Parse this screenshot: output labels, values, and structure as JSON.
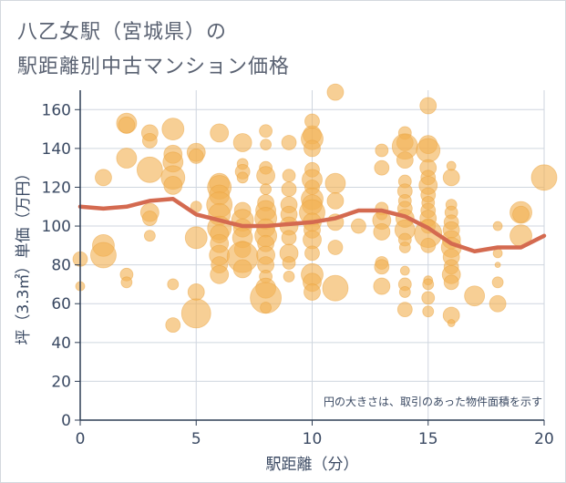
{
  "title_line1": "八乙女駅（宮城県）の",
  "title_line2": "駅距離別中古マンション価格",
  "chart_data": {
    "type": "scatter",
    "xlabel": "駅距離（分）",
    "ylabel": "坪（3.3㎡）単価（万円）",
    "xlim": [
      0,
      20
    ],
    "ylim": [
      0,
      170
    ],
    "xticks": [
      "0",
      "5",
      "10",
      "15",
      "20"
    ],
    "yticks": [
      "0",
      "20",
      "40",
      "60",
      "80",
      "100",
      "120",
      "140",
      "160"
    ],
    "note": "円の大きさは、取引のあった物件面積を示す",
    "bubble_color": "#f2b154",
    "line_color": "#d46a50",
    "grid": true,
    "points": [
      {
        "x": 0,
        "y": 83,
        "s": 8
      },
      {
        "x": 0,
        "y": 69,
        "s": 5
      },
      {
        "x": 1,
        "y": 125,
        "s": 9
      },
      {
        "x": 1,
        "y": 90,
        "s": 12
      },
      {
        "x": 1,
        "y": 85,
        "s": 14
      },
      {
        "x": 2,
        "y": 153,
        "s": 11
      },
      {
        "x": 2,
        "y": 152,
        "s": 9
      },
      {
        "x": 2,
        "y": 135,
        "s": 11
      },
      {
        "x": 2,
        "y": 75,
        "s": 7
      },
      {
        "x": 2,
        "y": 71,
        "s": 6
      },
      {
        "x": 3,
        "y": 148,
        "s": 9
      },
      {
        "x": 3,
        "y": 144,
        "s": 8
      },
      {
        "x": 3,
        "y": 129,
        "s": 14
      },
      {
        "x": 3,
        "y": 107,
        "s": 10
      },
      {
        "x": 3,
        "y": 104,
        "s": 8
      },
      {
        "x": 3,
        "y": 95,
        "s": 6
      },
      {
        "x": 4,
        "y": 150,
        "s": 12
      },
      {
        "x": 4,
        "y": 137,
        "s": 10
      },
      {
        "x": 4,
        "y": 133,
        "s": 11
      },
      {
        "x": 4,
        "y": 125,
        "s": 13
      },
      {
        "x": 4,
        "y": 121,
        "s": 10
      },
      {
        "x": 4,
        "y": 70,
        "s": 6
      },
      {
        "x": 4,
        "y": 49,
        "s": 8
      },
      {
        "x": 5,
        "y": 138,
        "s": 10
      },
      {
        "x": 5,
        "y": 136,
        "s": 8
      },
      {
        "x": 5,
        "y": 110,
        "s": 6
      },
      {
        "x": 5,
        "y": 94,
        "s": 12
      },
      {
        "x": 5,
        "y": 66,
        "s": 9
      },
      {
        "x": 5,
        "y": 55,
        "s": 16
      },
      {
        "x": 6,
        "y": 148,
        "s": 10
      },
      {
        "x": 6,
        "y": 122,
        "s": 11
      },
      {
        "x": 6,
        "y": 120,
        "s": 13
      },
      {
        "x": 6,
        "y": 116,
        "s": 11
      },
      {
        "x": 6,
        "y": 111,
        "s": 14
      },
      {
        "x": 6,
        "y": 106,
        "s": 12
      },
      {
        "x": 6,
        "y": 99,
        "s": 13
      },
      {
        "x": 6,
        "y": 96,
        "s": 10
      },
      {
        "x": 6,
        "y": 91,
        "s": 10
      },
      {
        "x": 6,
        "y": 85,
        "s": 11
      },
      {
        "x": 6,
        "y": 80,
        "s": 9
      },
      {
        "x": 6,
        "y": 75,
        "s": 10
      },
      {
        "x": 7,
        "y": 143,
        "s": 10
      },
      {
        "x": 7,
        "y": 132,
        "s": 6
      },
      {
        "x": 7,
        "y": 128,
        "s": 8
      },
      {
        "x": 7,
        "y": 125,
        "s": 6
      },
      {
        "x": 7,
        "y": 108,
        "s": 9
      },
      {
        "x": 7,
        "y": 103,
        "s": 12
      },
      {
        "x": 7,
        "y": 99,
        "s": 10
      },
      {
        "x": 7,
        "y": 94,
        "s": 11
      },
      {
        "x": 7,
        "y": 88,
        "s": 9
      },
      {
        "x": 7,
        "y": 84,
        "s": 17
      },
      {
        "x": 7,
        "y": 78,
        "s": 10
      },
      {
        "x": 8,
        "y": 149,
        "s": 7
      },
      {
        "x": 8,
        "y": 142,
        "s": 6
      },
      {
        "x": 8,
        "y": 130,
        "s": 7
      },
      {
        "x": 8,
        "y": 126,
        "s": 10
      },
      {
        "x": 8,
        "y": 119,
        "s": 6
      },
      {
        "x": 8,
        "y": 112,
        "s": 9
      },
      {
        "x": 8,
        "y": 108,
        "s": 11
      },
      {
        "x": 8,
        "y": 104,
        "s": 12
      },
      {
        "x": 8,
        "y": 99,
        "s": 10
      },
      {
        "x": 8,
        "y": 95,
        "s": 12
      },
      {
        "x": 8,
        "y": 91,
        "s": 9
      },
      {
        "x": 8,
        "y": 85,
        "s": 10
      },
      {
        "x": 8,
        "y": 80,
        "s": 9
      },
      {
        "x": 8,
        "y": 74,
        "s": 7
      },
      {
        "x": 8,
        "y": 68,
        "s": 11
      },
      {
        "x": 8,
        "y": 63,
        "s": 17
      },
      {
        "x": 8,
        "y": 58,
        "s": 6
      },
      {
        "x": 9,
        "y": 143,
        "s": 8
      },
      {
        "x": 9,
        "y": 126,
        "s": 7
      },
      {
        "x": 9,
        "y": 119,
        "s": 8
      },
      {
        "x": 9,
        "y": 111,
        "s": 9
      },
      {
        "x": 9,
        "y": 106,
        "s": 9
      },
      {
        "x": 9,
        "y": 100,
        "s": 10
      },
      {
        "x": 9,
        "y": 94,
        "s": 8
      },
      {
        "x": 9,
        "y": 86,
        "s": 10
      },
      {
        "x": 9,
        "y": 81,
        "s": 7
      },
      {
        "x": 9,
        "y": 74,
        "s": 6
      },
      {
        "x": 10,
        "y": 154,
        "s": 8
      },
      {
        "x": 10,
        "y": 147,
        "s": 10
      },
      {
        "x": 10,
        "y": 145,
        "s": 12
      },
      {
        "x": 10,
        "y": 140,
        "s": 9
      },
      {
        "x": 10,
        "y": 129,
        "s": 8
      },
      {
        "x": 10,
        "y": 124,
        "s": 11
      },
      {
        "x": 10,
        "y": 120,
        "s": 8
      },
      {
        "x": 10,
        "y": 114,
        "s": 12
      },
      {
        "x": 10,
        "y": 111,
        "s": 11
      },
      {
        "x": 10,
        "y": 107,
        "s": 14
      },
      {
        "x": 10,
        "y": 102,
        "s": 10
      },
      {
        "x": 10,
        "y": 98,
        "s": 9
      },
      {
        "x": 10,
        "y": 93,
        "s": 10
      },
      {
        "x": 10,
        "y": 86,
        "s": 8
      },
      {
        "x": 10,
        "y": 75,
        "s": 12
      },
      {
        "x": 10,
        "y": 71,
        "s": 10
      },
      {
        "x": 10,
        "y": 66,
        "s": 9
      },
      {
        "x": 11,
        "y": 169,
        "s": 9
      },
      {
        "x": 11,
        "y": 122,
        "s": 11
      },
      {
        "x": 11,
        "y": 113,
        "s": 9
      },
      {
        "x": 11,
        "y": 102,
        "s": 9
      },
      {
        "x": 11,
        "y": 89,
        "s": 8
      },
      {
        "x": 11,
        "y": 68,
        "s": 14
      },
      {
        "x": 12,
        "y": 100,
        "s": 8
      },
      {
        "x": 13,
        "y": 139,
        "s": 7
      },
      {
        "x": 13,
        "y": 130,
        "s": 8
      },
      {
        "x": 13,
        "y": 109,
        "s": 7
      },
      {
        "x": 13,
        "y": 106,
        "s": 6
      },
      {
        "x": 13,
        "y": 103,
        "s": 10
      },
      {
        "x": 13,
        "y": 97,
        "s": 9
      },
      {
        "x": 13,
        "y": 81,
        "s": 7
      },
      {
        "x": 13,
        "y": 79,
        "s": 8
      },
      {
        "x": 13,
        "y": 69,
        "s": 9
      },
      {
        "x": 14,
        "y": 148,
        "s": 7
      },
      {
        "x": 14,
        "y": 143,
        "s": 9
      },
      {
        "x": 14,
        "y": 141,
        "s": 14
      },
      {
        "x": 14,
        "y": 134,
        "s": 9
      },
      {
        "x": 14,
        "y": 123,
        "s": 7
      },
      {
        "x": 14,
        "y": 118,
        "s": 8
      },
      {
        "x": 14,
        "y": 113,
        "s": 7
      },
      {
        "x": 14,
        "y": 109,
        "s": 8
      },
      {
        "x": 14,
        "y": 104,
        "s": 10
      },
      {
        "x": 14,
        "y": 98,
        "s": 11
      },
      {
        "x": 14,
        "y": 93,
        "s": 7
      },
      {
        "x": 14,
        "y": 89,
        "s": 6
      },
      {
        "x": 14,
        "y": 77,
        "s": 5
      },
      {
        "x": 14,
        "y": 70,
        "s": 7
      },
      {
        "x": 14,
        "y": 66,
        "s": 6
      },
      {
        "x": 14,
        "y": 57,
        "s": 8
      },
      {
        "x": 15,
        "y": 162,
        "s": 9
      },
      {
        "x": 15,
        "y": 142,
        "s": 10
      },
      {
        "x": 15,
        "y": 139,
        "s": 13
      },
      {
        "x": 15,
        "y": 130,
        "s": 9
      },
      {
        "x": 15,
        "y": 125,
        "s": 8
      },
      {
        "x": 15,
        "y": 121,
        "s": 10
      },
      {
        "x": 15,
        "y": 116,
        "s": 8
      },
      {
        "x": 15,
        "y": 112,
        "s": 7
      },
      {
        "x": 15,
        "y": 108,
        "s": 8
      },
      {
        "x": 15,
        "y": 104,
        "s": 9
      },
      {
        "x": 15,
        "y": 100,
        "s": 8
      },
      {
        "x": 15,
        "y": 96,
        "s": 15
      },
      {
        "x": 15,
        "y": 90,
        "s": 8
      },
      {
        "x": 15,
        "y": 72,
        "s": 5
      },
      {
        "x": 15,
        "y": 70,
        "s": 6
      },
      {
        "x": 15,
        "y": 63,
        "s": 7
      },
      {
        "x": 15,
        "y": 56,
        "s": 6
      },
      {
        "x": 16,
        "y": 131,
        "s": 5
      },
      {
        "x": 16,
        "y": 125,
        "s": 9
      },
      {
        "x": 16,
        "y": 111,
        "s": 6
      },
      {
        "x": 16,
        "y": 107,
        "s": 7
      },
      {
        "x": 16,
        "y": 102,
        "s": 8
      },
      {
        "x": 16,
        "y": 98,
        "s": 9
      },
      {
        "x": 16,
        "y": 93,
        "s": 10
      },
      {
        "x": 16,
        "y": 89,
        "s": 11
      },
      {
        "x": 16,
        "y": 84,
        "s": 9
      },
      {
        "x": 16,
        "y": 79,
        "s": 8
      },
      {
        "x": 16,
        "y": 75,
        "s": 10
      },
      {
        "x": 16,
        "y": 71,
        "s": 8
      },
      {
        "x": 16,
        "y": 54,
        "s": 9
      },
      {
        "x": 16,
        "y": 50,
        "s": 4
      },
      {
        "x": 17,
        "y": 64,
        "s": 11
      },
      {
        "x": 18,
        "y": 100,
        "s": 5
      },
      {
        "x": 18,
        "y": 86,
        "s": 5
      },
      {
        "x": 18,
        "y": 80,
        "s": 3
      },
      {
        "x": 18,
        "y": 71,
        "s": 6
      },
      {
        "x": 18,
        "y": 60,
        "s": 9
      },
      {
        "x": 19,
        "y": 107,
        "s": 12
      },
      {
        "x": 19,
        "y": 106,
        "s": 9
      },
      {
        "x": 19,
        "y": 95,
        "s": 12
      },
      {
        "x": 20,
        "y": 125,
        "s": 14
      }
    ],
    "trend": {
      "x": [
        0,
        1,
        2,
        3,
        4,
        5,
        6,
        7,
        8,
        9,
        10,
        11,
        12,
        13,
        14,
        15,
        16,
        17,
        18,
        19,
        20
      ],
      "y": [
        110,
        109,
        110,
        113,
        114,
        106,
        103,
        100,
        100,
        101,
        102,
        104,
        108,
        108,
        105,
        99,
        91,
        87,
        89,
        89,
        95
      ]
    }
  }
}
